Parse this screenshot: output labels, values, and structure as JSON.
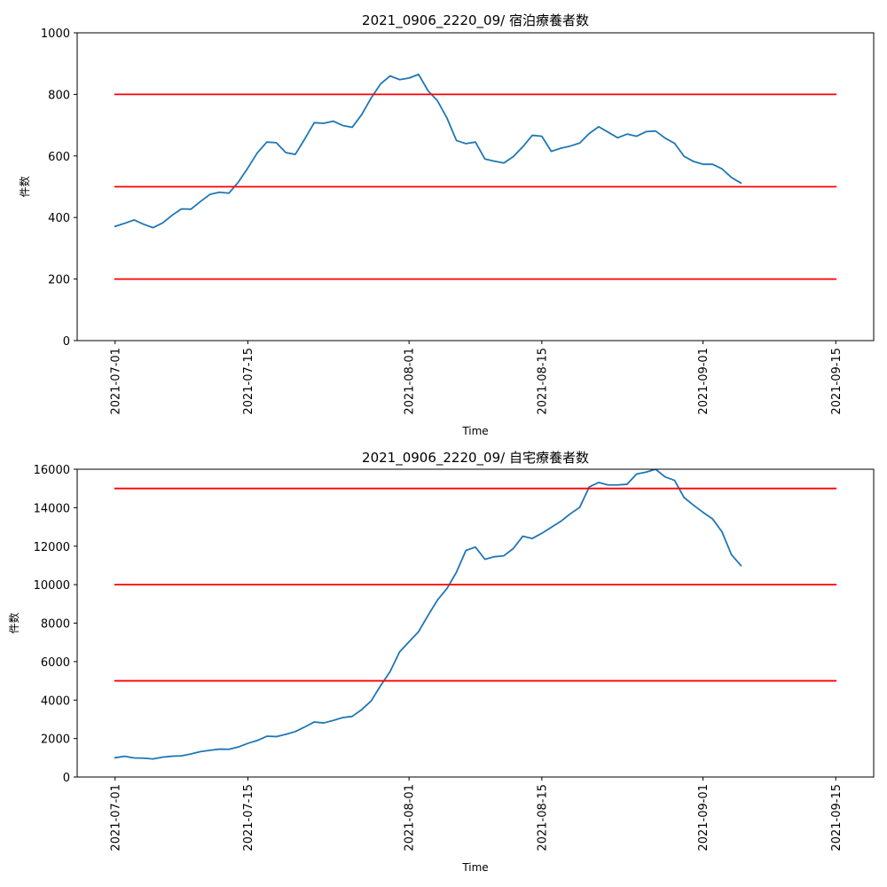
{
  "chart_data": [
    {
      "type": "line",
      "title": "2021_0906_2220_09/ 宿泊療養者数",
      "xlabel": "Time",
      "ylabel": "件数",
      "ylim": [
        0,
        1000
      ],
      "yticks": [
        0,
        200,
        400,
        600,
        800,
        1000
      ],
      "yticklabels": [
        "0",
        "200",
        "400",
        "600",
        "800",
        "1000"
      ],
      "xlim": [
        "2021-06-27",
        "2021-09-19"
      ],
      "xticks": [
        "2021-07-01",
        "2021-07-15",
        "2021-08-01",
        "2021-08-15",
        "2021-09-01",
        "2021-09-15"
      ],
      "grid": false,
      "series": [
        {
          "color": "#1f77b4",
          "x": [
            "2021-07-01",
            "2021-07-02",
            "2021-07-03",
            "2021-07-04",
            "2021-07-05",
            "2021-07-06",
            "2021-07-07",
            "2021-07-08",
            "2021-07-09",
            "2021-07-10",
            "2021-07-11",
            "2021-07-12",
            "2021-07-13",
            "2021-07-14",
            "2021-07-15",
            "2021-07-16",
            "2021-07-17",
            "2021-07-18",
            "2021-07-19",
            "2021-07-20",
            "2021-07-21",
            "2021-07-22",
            "2021-07-23",
            "2021-07-24",
            "2021-07-25",
            "2021-07-26",
            "2021-07-27",
            "2021-07-28",
            "2021-07-29",
            "2021-07-30",
            "2021-07-31",
            "2021-08-01",
            "2021-08-02",
            "2021-08-03",
            "2021-08-04",
            "2021-08-05",
            "2021-08-06",
            "2021-08-07",
            "2021-08-08",
            "2021-08-09",
            "2021-08-10",
            "2021-08-11",
            "2021-08-12",
            "2021-08-13",
            "2021-08-14",
            "2021-08-15",
            "2021-08-16",
            "2021-08-17",
            "2021-08-18",
            "2021-08-19",
            "2021-08-20",
            "2021-08-21",
            "2021-08-22",
            "2021-08-23",
            "2021-08-24",
            "2021-08-25",
            "2021-08-26",
            "2021-08-27",
            "2021-08-28",
            "2021-08-29",
            "2021-08-30",
            "2021-08-31",
            "2021-09-01",
            "2021-09-02",
            "2021-09-03",
            "2021-09-04",
            "2021-09-05"
          ],
          "y": [
            371,
            381,
            392,
            378,
            367,
            382,
            407,
            428,
            427,
            452,
            475,
            482,
            479,
            515,
            561,
            610,
            645,
            643,
            611,
            605,
            655,
            708,
            706,
            713,
            699,
            693,
            734,
            788,
            834,
            860,
            848,
            853,
            865,
            812,
            779,
            723,
            650,
            640,
            645,
            590,
            583,
            577,
            598,
            630,
            667,
            664,
            615,
            625,
            632,
            642,
            673,
            695,
            677,
            659,
            671,
            664,
            679,
            681,
            658,
            641,
            599,
            582,
            573,
            573,
            558,
            530,
            512
          ]
        },
        {
          "color": "#ff0000",
          "x": [
            "2021-07-01",
            "2021-09-15"
          ],
          "y": [
            800,
            800
          ]
        },
        {
          "color": "#ff0000",
          "x": [
            "2021-07-01",
            "2021-09-15"
          ],
          "y": [
            500,
            500
          ]
        },
        {
          "color": "#ff0000",
          "x": [
            "2021-07-01",
            "2021-09-15"
          ],
          "y": [
            200,
            200
          ]
        }
      ]
    },
    {
      "type": "line",
      "title": "2021_0906_2220_09/ 自宅療養者数",
      "xlabel": "Time",
      "ylabel": "件数",
      "ylim": [
        0,
        16000
      ],
      "yticks": [
        0,
        2000,
        4000,
        6000,
        8000,
        10000,
        12000,
        14000,
        16000
      ],
      "yticklabels": [
        "0",
        "2000",
        "4000",
        "6000",
        "8000",
        "10000",
        "12000",
        "14000",
        "16000"
      ],
      "xlim": [
        "2021-06-27",
        "2021-09-19"
      ],
      "xticks": [
        "2021-07-01",
        "2021-07-15",
        "2021-08-01",
        "2021-08-15",
        "2021-09-01",
        "2021-09-15"
      ],
      "grid": false,
      "series": [
        {
          "color": "#1f77b4",
          "x": [
            "2021-07-01",
            "2021-07-02",
            "2021-07-03",
            "2021-07-04",
            "2021-07-05",
            "2021-07-06",
            "2021-07-07",
            "2021-07-08",
            "2021-07-09",
            "2021-07-10",
            "2021-07-11",
            "2021-07-12",
            "2021-07-13",
            "2021-07-14",
            "2021-07-15",
            "2021-07-16",
            "2021-07-17",
            "2021-07-18",
            "2021-07-19",
            "2021-07-20",
            "2021-07-21",
            "2021-07-22",
            "2021-07-23",
            "2021-07-24",
            "2021-07-25",
            "2021-07-26",
            "2021-07-27",
            "2021-07-28",
            "2021-07-29",
            "2021-07-30",
            "2021-07-31",
            "2021-08-01",
            "2021-08-02",
            "2021-08-03",
            "2021-08-04",
            "2021-08-05",
            "2021-08-06",
            "2021-08-07",
            "2021-08-08",
            "2021-08-09",
            "2021-08-10",
            "2021-08-11",
            "2021-08-12",
            "2021-08-13",
            "2021-08-14",
            "2021-08-15",
            "2021-08-16",
            "2021-08-17",
            "2021-08-18",
            "2021-08-19",
            "2021-08-20",
            "2021-08-21",
            "2021-08-22",
            "2021-08-23",
            "2021-08-24",
            "2021-08-25",
            "2021-08-26",
            "2021-08-27",
            "2021-08-28",
            "2021-08-29",
            "2021-08-30",
            "2021-08-31",
            "2021-09-01",
            "2021-09-02",
            "2021-09-03",
            "2021-09-04",
            "2021-09-05"
          ],
          "y": [
            1000,
            1080,
            990,
            980,
            940,
            1030,
            1080,
            1100,
            1200,
            1320,
            1390,
            1450,
            1440,
            1560,
            1750,
            1900,
            2120,
            2100,
            2220,
            2360,
            2600,
            2860,
            2810,
            2940,
            3090,
            3150,
            3500,
            3950,
            4750,
            5480,
            6500,
            7030,
            7550,
            8400,
            9200,
            9800,
            10650,
            11780,
            11950,
            11320,
            11450,
            11500,
            11880,
            12520,
            12400,
            12670,
            12980,
            13290,
            13680,
            14020,
            15080,
            15310,
            15180,
            15180,
            15220,
            15750,
            15850,
            16000,
            15600,
            15420,
            14530,
            14130,
            13760,
            13420,
            12750,
            11560,
            10990
          ]
        },
        {
          "color": "#ff0000",
          "x": [
            "2021-07-01",
            "2021-09-15"
          ],
          "y": [
            15000,
            15000
          ]
        },
        {
          "color": "#ff0000",
          "x": [
            "2021-07-01",
            "2021-09-15"
          ],
          "y": [
            10000,
            10000
          ]
        },
        {
          "color": "#ff0000",
          "x": [
            "2021-07-01",
            "2021-09-15"
          ],
          "y": [
            5000,
            5000
          ]
        }
      ]
    }
  ]
}
